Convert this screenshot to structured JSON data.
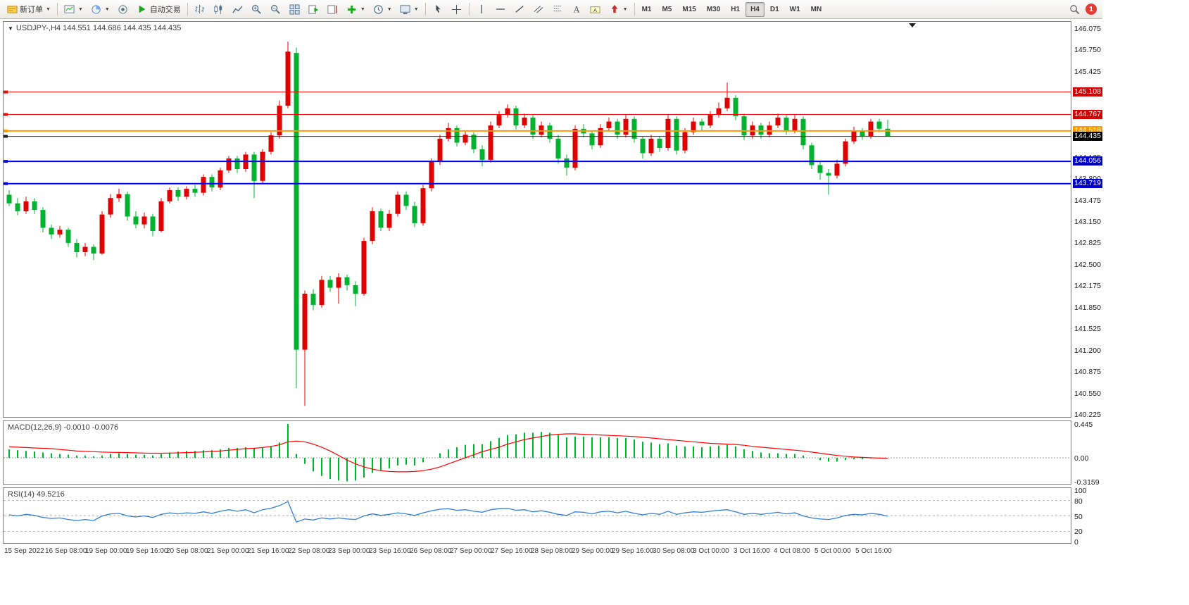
{
  "toolbar": {
    "new_order_label": "新订单",
    "autotrading_label": "自动交易",
    "notification_badge": "1",
    "buttons": [
      {
        "name": "new-order-button",
        "icon": "new-order-icon",
        "label": "新订单",
        "caret": true
      },
      {
        "sep": true
      },
      {
        "name": "new-chart-button",
        "icon": "new-chart-icon",
        "caret": true
      },
      {
        "name": "profiles-button",
        "icon": "profiles-icon",
        "caret": true
      },
      {
        "name": "strategy-tester-button",
        "icon": "strategy-icon"
      },
      {
        "name": "autotrading-button",
        "icon": "autotrading-icon",
        "label": "自动交易"
      },
      {
        "sep": true
      },
      {
        "name": "bars-button",
        "icon": "bars-icon"
      },
      {
        "name": "candlesticks-button",
        "icon": "candles-icon"
      },
      {
        "name": "line-chart-button",
        "icon": "line-chart-icon"
      },
      {
        "name": "zoom-in-button",
        "icon": "zoom-in-icon"
      },
      {
        "name": "zoom-out-button",
        "icon": "zoom-out-icon"
      },
      {
        "name": "tile-windows-button",
        "icon": "tile-windows-icon"
      },
      {
        "name": "auto-scroll-button",
        "icon": "auto-scroll-icon"
      },
      {
        "name": "chart-shift-button",
        "icon": "chart-shift-icon"
      },
      {
        "name": "indicators-button",
        "icon": "indicators-icon",
        "caret": true
      },
      {
        "name": "periods-button",
        "icon": "periods-icon",
        "caret": true
      },
      {
        "name": "templates-button",
        "icon": "templates-icon",
        "caret": true
      },
      {
        "sep": true
      },
      {
        "name": "cursor-button",
        "icon": "cursor-icon"
      },
      {
        "name": "crosshair-button",
        "icon": "crosshair-icon"
      },
      {
        "sep": true
      },
      {
        "name": "vertical-line-button",
        "icon": "vline-icon"
      },
      {
        "name": "horizontal-line-button",
        "icon": "hline-icon"
      },
      {
        "name": "trendline-button",
        "icon": "trendline-icon"
      },
      {
        "name": "channel-button",
        "icon": "channel-icon"
      },
      {
        "name": "fibonacci-button",
        "icon": "fibonacci-icon"
      },
      {
        "name": "text-button",
        "icon": "text-icon"
      },
      {
        "name": "text-label-button",
        "icon": "text-label-icon"
      },
      {
        "name": "arrows-button",
        "icon": "arrows-icon",
        "caret": true
      },
      {
        "sep": true
      }
    ],
    "timeframes": {
      "items": [
        "M1",
        "M5",
        "M15",
        "M30",
        "H1",
        "H4",
        "D1",
        "W1",
        "MN"
      ],
      "active": "H4"
    }
  },
  "chart": {
    "symbol_label": "USDJPY-,H4 144.551 144.686 144.435 144.435"
  },
  "macd": {
    "label": "MACD(12,26,9) -0.0010 -0.0076"
  },
  "rsi": {
    "label": "RSI(14) 49.5216"
  },
  "colors": {
    "bull": "#e00000",
    "bear": "#00b22d",
    "macd_hist": "#00b22d",
    "macd_signal": "#ff0000",
    "rsi_line": "#2f7ed8",
    "level_red": "#ff0000",
    "level_orange": "#ff9900",
    "level_blue": "#0000ff",
    "bid_line": "#222222"
  },
  "chart_data": {
    "type": "candlestick",
    "symbol": "USDJPY-",
    "timeframe": "H4",
    "price_axis": {
      "top": 146.075,
      "step": 0.325,
      "labels": [
        "146.075",
        "145.750",
        "145.425",
        "144.125",
        "143.800",
        "143.475",
        "143.150",
        "142.825",
        "142.500",
        "142.175",
        "141.850",
        "141.525",
        "141.200",
        "140.875",
        "140.550",
        "140.225"
      ]
    },
    "levels": [
      {
        "price": 145.108,
        "label": "145.108",
        "color": "#ff0000",
        "width": 1,
        "badge_bg": "#d40000"
      },
      {
        "price": 144.767,
        "label": "144.767",
        "color": "#ff0000",
        "width": 1,
        "badge_bg": "#d40000"
      },
      {
        "price": 144.518,
        "label": "144.518",
        "color": "#ff9900",
        "width": 2,
        "badge_bg": "#ff9900"
      },
      {
        "price": 144.056,
        "label": "144.056",
        "color": "#0000ff",
        "width": 2,
        "badge_bg": "#0000cc"
      },
      {
        "price": 143.719,
        "label": "143.719",
        "color": "#0000ff",
        "width": 2,
        "badge_bg": "#0000cc"
      }
    ],
    "bid": {
      "price": 144.435,
      "label": "144.435",
      "badge_bg": "#000000"
    },
    "candles": [
      [
        143.55,
        143.62,
        143.38,
        143.42
      ],
      [
        143.42,
        143.5,
        143.24,
        143.3
      ],
      [
        143.3,
        143.52,
        143.26,
        143.45
      ],
      [
        143.45,
        143.5,
        143.26,
        143.32
      ],
      [
        143.32,
        143.36,
        142.98,
        143.05
      ],
      [
        143.05,
        143.1,
        142.88,
        142.95
      ],
      [
        142.95,
        143.08,
        142.9,
        143.02
      ],
      [
        143.02,
        143.05,
        142.76,
        142.82
      ],
      [
        142.82,
        142.88,
        142.6,
        142.68
      ],
      [
        142.68,
        142.82,
        142.62,
        142.76
      ],
      [
        142.76,
        142.8,
        142.56,
        142.66
      ],
      [
        142.66,
        143.3,
        142.64,
        143.25
      ],
      [
        143.25,
        143.56,
        143.2,
        143.5
      ],
      [
        143.5,
        143.64,
        143.44,
        143.56
      ],
      [
        143.56,
        143.6,
        143.16,
        143.22
      ],
      [
        143.22,
        143.3,
        143.04,
        143.1
      ],
      [
        143.1,
        143.28,
        143.04,
        143.22
      ],
      [
        143.22,
        143.26,
        142.92,
        143.0
      ],
      [
        143.0,
        143.5,
        142.98,
        143.45
      ],
      [
        143.45,
        143.66,
        143.42,
        143.62
      ],
      [
        143.62,
        143.66,
        143.46,
        143.52
      ],
      [
        143.52,
        143.68,
        143.48,
        143.64
      ],
      [
        143.64,
        143.7,
        143.52,
        143.58
      ],
      [
        143.58,
        143.86,
        143.54,
        143.82
      ],
      [
        143.82,
        143.86,
        143.6,
        143.66
      ],
      [
        143.66,
        143.96,
        143.62,
        143.92
      ],
      [
        143.92,
        144.14,
        143.88,
        144.1
      ],
      [
        144.1,
        144.14,
        143.88,
        143.94
      ],
      [
        143.94,
        144.2,
        143.9,
        144.16
      ],
      [
        144.16,
        144.2,
        143.5,
        143.76
      ],
      [
        143.76,
        144.24,
        143.72,
        144.2
      ],
      [
        144.2,
        144.5,
        144.16,
        144.45
      ],
      [
        144.45,
        144.98,
        144.4,
        144.9
      ],
      [
        144.9,
        145.87,
        144.86,
        145.72
      ],
      [
        145.7,
        145.78,
        140.62,
        141.2
      ],
      [
        141.2,
        142.1,
        140.35,
        142.05
      ],
      [
        142.05,
        142.12,
        141.8,
        141.88
      ],
      [
        141.88,
        142.32,
        141.84,
        142.26
      ],
      [
        142.26,
        142.32,
        142.08,
        142.14
      ],
      [
        142.14,
        142.36,
        141.9,
        142.3
      ],
      [
        142.3,
        142.34,
        142.1,
        142.18
      ],
      [
        142.18,
        142.24,
        141.86,
        142.05
      ],
      [
        142.05,
        142.9,
        142.02,
        142.85
      ],
      [
        142.85,
        143.36,
        142.8,
        143.3
      ],
      [
        143.3,
        143.34,
        143.0,
        143.05
      ],
      [
        143.05,
        143.32,
        143.0,
        143.26
      ],
      [
        143.26,
        143.6,
        143.22,
        143.55
      ],
      [
        143.55,
        143.6,
        143.32,
        143.38
      ],
      [
        143.38,
        143.44,
        143.06,
        143.12
      ],
      [
        143.12,
        143.7,
        143.08,
        143.65
      ],
      [
        143.65,
        144.1,
        143.6,
        144.05
      ],
      [
        144.05,
        144.46,
        144.0,
        144.4
      ],
      [
        144.4,
        144.64,
        144.36,
        144.56
      ],
      [
        144.56,
        144.6,
        144.28,
        144.34
      ],
      [
        144.34,
        144.52,
        144.3,
        144.46
      ],
      [
        144.46,
        144.5,
        144.18,
        144.24
      ],
      [
        144.24,
        144.3,
        143.98,
        144.08
      ],
      [
        144.08,
        144.66,
        144.04,
        144.6
      ],
      [
        144.6,
        144.82,
        144.56,
        144.76
      ],
      [
        144.76,
        144.92,
        144.72,
        144.86
      ],
      [
        144.86,
        144.9,
        144.54,
        144.6
      ],
      [
        144.6,
        144.78,
        144.56,
        144.72
      ],
      [
        144.72,
        144.76,
        144.4,
        144.46
      ],
      [
        144.46,
        144.66,
        144.42,
        144.6
      ],
      [
        144.6,
        144.64,
        144.34,
        144.4
      ],
      [
        144.4,
        144.46,
        144.02,
        144.1
      ],
      [
        144.1,
        144.16,
        143.84,
        143.96
      ],
      [
        143.96,
        144.6,
        143.92,
        144.55
      ],
      [
        144.55,
        144.62,
        144.42,
        144.48
      ],
      [
        144.48,
        144.52,
        144.24,
        144.3
      ],
      [
        144.3,
        144.62,
        144.26,
        144.56
      ],
      [
        144.56,
        144.72,
        144.52,
        144.66
      ],
      [
        144.66,
        144.7,
        144.4,
        144.46
      ],
      [
        144.46,
        144.76,
        144.42,
        144.7
      ],
      [
        144.7,
        144.74,
        144.34,
        144.4
      ],
      [
        144.4,
        144.44,
        144.1,
        144.18
      ],
      [
        144.18,
        144.46,
        144.14,
        144.4
      ],
      [
        144.4,
        144.44,
        144.2,
        144.26
      ],
      [
        144.26,
        144.76,
        144.22,
        144.7
      ],
      [
        144.7,
        144.74,
        144.16,
        144.22
      ],
      [
        144.22,
        144.56,
        144.18,
        144.5
      ],
      [
        144.5,
        144.72,
        144.46,
        144.66
      ],
      [
        144.66,
        144.7,
        144.52,
        144.6
      ],
      [
        144.6,
        144.82,
        144.56,
        144.76
      ],
      [
        144.76,
        144.95,
        144.72,
        144.86
      ],
      [
        144.86,
        145.25,
        144.82,
        145.02
      ],
      [
        145.02,
        145.06,
        144.68,
        144.74
      ],
      [
        144.74,
        144.78,
        144.38,
        144.45
      ],
      [
        144.45,
        144.66,
        144.4,
        144.6
      ],
      [
        144.6,
        144.64,
        144.4,
        144.46
      ],
      [
        144.46,
        144.66,
        144.42,
        144.6
      ],
      [
        144.6,
        144.78,
        144.56,
        144.72
      ],
      [
        144.72,
        144.76,
        144.46,
        144.52
      ],
      [
        144.52,
        144.76,
        144.48,
        144.7
      ],
      [
        144.7,
        144.74,
        144.24,
        144.3
      ],
      [
        144.3,
        144.34,
        143.94,
        144.0
      ],
      [
        144.0,
        144.06,
        143.78,
        143.88
      ],
      [
        143.88,
        143.94,
        143.55,
        143.84
      ],
      [
        143.84,
        144.08,
        143.8,
        144.02
      ],
      [
        144.02,
        144.4,
        143.98,
        144.36
      ],
      [
        144.36,
        144.58,
        144.32,
        144.52
      ],
      [
        144.52,
        144.56,
        144.38,
        144.44
      ],
      [
        144.44,
        144.7,
        144.4,
        144.66
      ],
      [
        144.66,
        144.7,
        144.5,
        144.551
      ],
      [
        144.551,
        144.686,
        144.435,
        144.435
      ]
    ],
    "macd": {
      "axis_labels": [
        "0.445",
        "0.00",
        "-0.3159"
      ],
      "histogram": [
        0.11,
        0.1,
        0.09,
        0.08,
        0.07,
        0.06,
        0.05,
        0.04,
        0.03,
        0.03,
        0.02,
        0.03,
        0.05,
        0.06,
        0.05,
        0.04,
        0.04,
        0.03,
        0.05,
        0.07,
        0.08,
        0.09,
        0.09,
        0.1,
        0.1,
        0.11,
        0.13,
        0.13,
        0.14,
        0.12,
        0.13,
        0.15,
        0.2,
        0.445,
        0.05,
        -0.08,
        -0.18,
        -0.24,
        -0.28,
        -0.3,
        -0.31,
        -0.3,
        -0.26,
        -0.2,
        -0.17,
        -0.14,
        -0.1,
        -0.09,
        -0.1,
        -0.06,
        0.0,
        0.06,
        0.11,
        0.14,
        0.17,
        0.18,
        0.18,
        0.22,
        0.26,
        0.3,
        0.31,
        0.33,
        0.33,
        0.34,
        0.33,
        0.3,
        0.27,
        0.28,
        0.28,
        0.27,
        0.27,
        0.27,
        0.26,
        0.26,
        0.24,
        0.21,
        0.2,
        0.18,
        0.19,
        0.16,
        0.15,
        0.15,
        0.14,
        0.15,
        0.16,
        0.17,
        0.15,
        0.11,
        0.09,
        0.07,
        0.06,
        0.06,
        0.05,
        0.05,
        0.03,
        0.0,
        -0.03,
        -0.05,
        -0.05,
        -0.03,
        -0.02,
        -0.02,
        -0.01,
        -0.005,
        -0.001
      ],
      "signal": [
        0.145,
        0.14,
        0.135,
        0.13,
        0.125,
        0.12,
        0.11,
        0.1,
        0.09,
        0.085,
        0.08,
        0.075,
        0.072,
        0.07,
        0.068,
        0.065,
        0.062,
        0.06,
        0.06,
        0.062,
        0.065,
        0.068,
        0.072,
        0.078,
        0.084,
        0.09,
        0.1,
        0.11,
        0.12,
        0.125,
        0.135,
        0.15,
        0.17,
        0.21,
        0.22,
        0.21,
        0.18,
        0.14,
        0.09,
        0.03,
        -0.03,
        -0.08,
        -0.12,
        -0.15,
        -0.17,
        -0.18,
        -0.185,
        -0.185,
        -0.18,
        -0.17,
        -0.15,
        -0.12,
        -0.08,
        -0.04,
        0.0,
        0.04,
        0.08,
        0.11,
        0.14,
        0.18,
        0.21,
        0.24,
        0.26,
        0.28,
        0.3,
        0.31,
        0.315,
        0.315,
        0.31,
        0.305,
        0.3,
        0.295,
        0.29,
        0.285,
        0.28,
        0.27,
        0.26,
        0.25,
        0.24,
        0.23,
        0.22,
        0.21,
        0.2,
        0.19,
        0.185,
        0.18,
        0.175,
        0.165,
        0.15,
        0.14,
        0.13,
        0.12,
        0.11,
        0.1,
        0.09,
        0.075,
        0.06,
        0.045,
        0.03,
        0.02,
        0.01,
        0.005,
        0.0,
        -0.004,
        -0.0076
      ]
    },
    "rsi": {
      "axis_labels": [
        "100",
        "80",
        "50",
        "20",
        "0"
      ],
      "levels": [
        80,
        50,
        20
      ],
      "values": [
        52,
        50,
        53,
        51,
        47,
        45,
        46,
        43,
        41,
        43,
        41,
        50,
        54,
        55,
        50,
        48,
        50,
        47,
        53,
        56,
        54,
        56,
        55,
        58,
        55,
        59,
        62,
        59,
        62,
        56,
        62,
        65,
        70,
        78,
        38,
        44,
        42,
        46,
        44,
        46,
        44,
        43,
        50,
        54,
        51,
        53,
        56,
        54,
        51,
        56,
        60,
        63,
        64,
        61,
        62,
        59,
        57,
        62,
        64,
        65,
        61,
        62,
        58,
        60,
        57,
        53,
        51,
        58,
        57,
        54,
        58,
        59,
        56,
        59,
        55,
        52,
        55,
        53,
        59,
        53,
        56,
        58,
        57,
        59,
        61,
        62,
        58,
        53,
        55,
        53,
        55,
        57,
        54,
        56,
        50,
        46,
        44,
        43,
        46,
        51,
        53,
        52,
        55,
        53,
        49.52
      ]
    },
    "time_labels": [
      "15 Sep 2022",
      "16 Sep 08:00",
      "19 Sep 00:00",
      "19 Sep 16:00",
      "20 Sep 08:00",
      "21 Sep 00:00",
      "21 Sep 16:00",
      "22 Sep 08:00",
      "23 Sep 00:00",
      "23 Sep 16:00",
      "26 Sep 08:00",
      "27 Sep 00:00",
      "27 Sep 16:00",
      "28 Sep 08:00",
      "29 Sep 00:00",
      "29 Sep 16:00",
      "30 Sep 08:00",
      "3 Oct 00:00",
      "3 Oct 16:00",
      "4 Oct 08:00",
      "5 Oct 00:00",
      "5 Oct 16:00"
    ]
  }
}
